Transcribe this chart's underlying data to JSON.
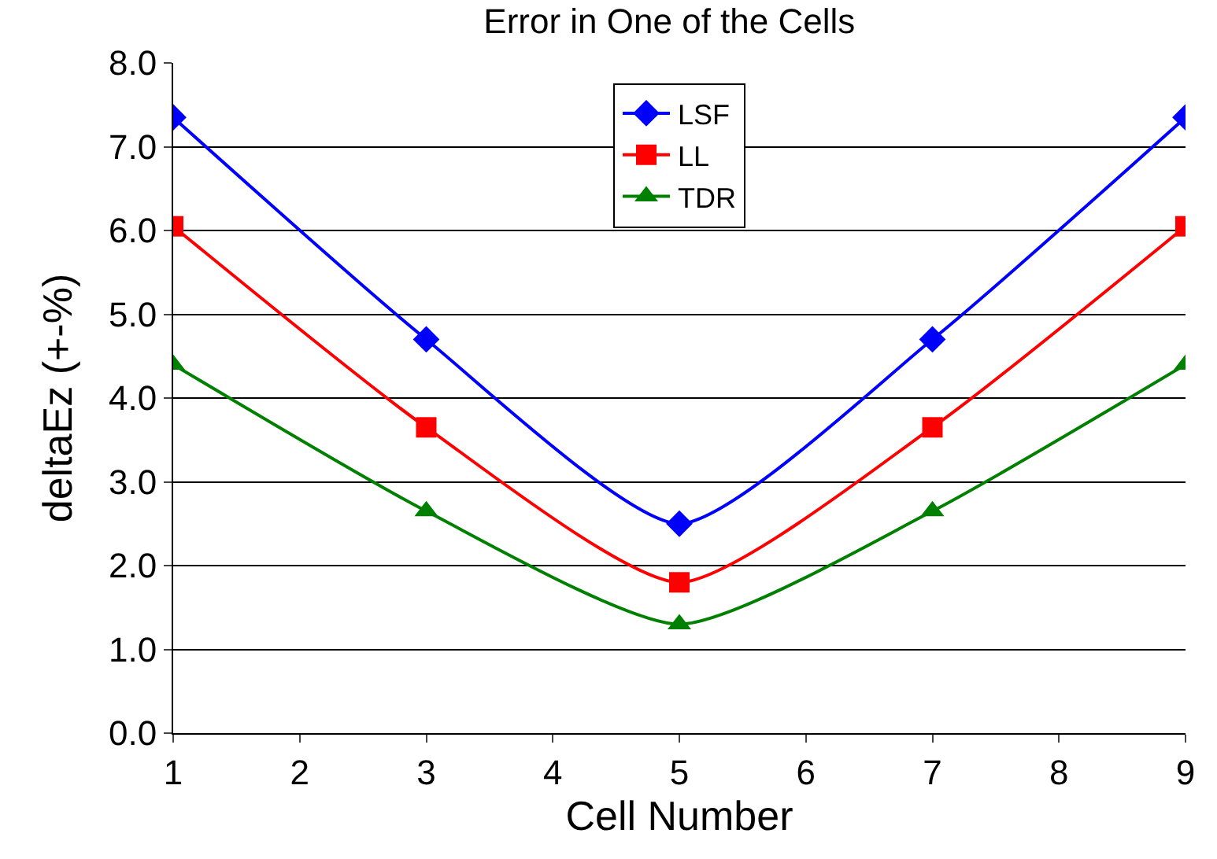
{
  "chart_data": {
    "type": "line",
    "title": "Error in One of the Cells",
    "xlabel": "Cell Number",
    "ylabel": "deltaEz (+-%)",
    "x": [
      1,
      3,
      5,
      7,
      9
    ],
    "series": [
      {
        "name": "LSF",
        "color": "#0000ff",
        "marker": "diamond",
        "values": [
          7.35,
          4.7,
          2.5,
          4.7,
          7.35
        ]
      },
      {
        "name": "LL",
        "color": "#ff0000",
        "marker": "square",
        "values": [
          6.05,
          3.65,
          1.8,
          3.65,
          6.05
        ]
      },
      {
        "name": "TDR",
        "color": "#008000",
        "marker": "triangle",
        "values": [
          4.4,
          2.65,
          1.3,
          2.65,
          4.4
        ]
      }
    ],
    "xlim": [
      1,
      9
    ],
    "xticks": [
      1,
      2,
      3,
      4,
      5,
      6,
      7,
      8,
      9
    ],
    "ylim": [
      0,
      8
    ],
    "yticks": [
      {
        "value": 0,
        "label": "0.0"
      },
      {
        "value": 1,
        "label": "1.0"
      },
      {
        "value": 2,
        "label": "2.0"
      },
      {
        "value": 3,
        "label": "3.0"
      },
      {
        "value": 4,
        "label": "4.0"
      },
      {
        "value": 5,
        "label": "5.0"
      },
      {
        "value": 6,
        "label": "6.0"
      },
      {
        "value": 7,
        "label": "7.0"
      },
      {
        "value": 8,
        "label": "8.0"
      }
    ],
    "grid": "y",
    "legend": "top",
    "line_style": "solid"
  }
}
